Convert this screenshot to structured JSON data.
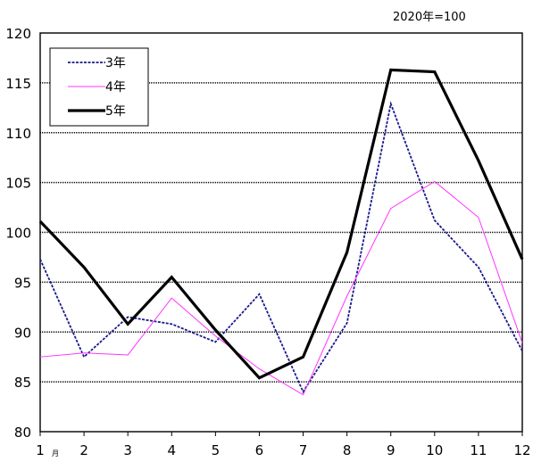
{
  "chart_data": {
    "type": "line",
    "unit_note": "2020年=100",
    "x": [
      1,
      2,
      3,
      4,
      5,
      6,
      7,
      8,
      9,
      10,
      11,
      12
    ],
    "tick_labels": [
      "1",
      "2",
      "3",
      "4",
      "5",
      "6",
      "7",
      "8",
      "9",
      "10",
      "11",
      "12"
    ],
    "first_tick_suffix": "月",
    "yticks": [
      "80",
      "85",
      "90",
      "95",
      "100",
      "105",
      "110",
      "115",
      "120"
    ],
    "ylim": [
      80,
      120
    ],
    "grid": true,
    "legend_position": "top-left",
    "series": [
      {
        "name": "3年",
        "color": "#1a1a8c",
        "style": "dashed",
        "values": [
          97.3,
          87.5,
          91.5,
          90.8,
          89.0,
          93.8,
          84.0,
          90.9,
          112.9,
          101.2,
          96.5,
          88.1
        ]
      },
      {
        "name": "4年",
        "color": "#ff33ff",
        "style": "thin",
        "values": [
          87.5,
          87.9,
          87.7,
          93.4,
          89.6,
          86.3,
          83.7,
          93.6,
          102.4,
          105.1,
          101.5,
          88.9
        ]
      },
      {
        "name": "5年",
        "color": "#000000",
        "style": "bold",
        "values": [
          101.1,
          96.5,
          90.8,
          95.5,
          90.2,
          85.4,
          87.5,
          98.0,
          116.3,
          116.1,
          107.2,
          97.3
        ]
      }
    ]
  }
}
